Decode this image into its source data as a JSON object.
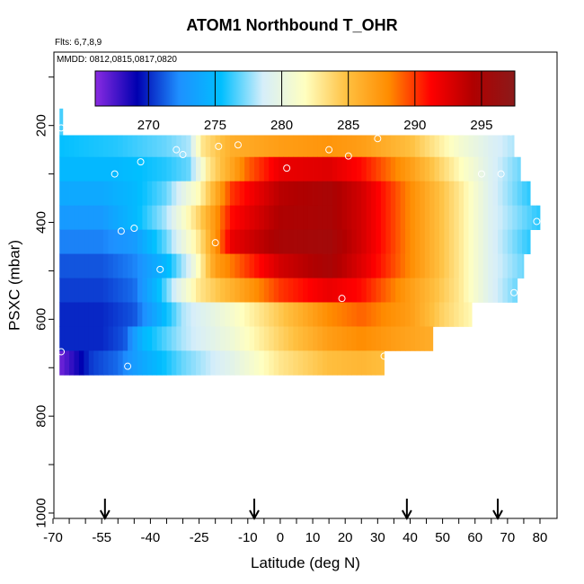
{
  "header": {
    "title": "ATOM1 Northbound T_OHR",
    "flights_label": "Flts: 6,7,8,9",
    "dates_label": "MMDD: 0812,0815,0817,0820"
  },
  "chart_data": {
    "type": "heatmap",
    "title": "ATOM1 Northbound T_OHR",
    "xlabel": "Latitude (deg N)",
    "ylabel": "PSXC (mbar)",
    "xlim": [
      -70,
      80
    ],
    "ylim": [
      1000,
      80
    ],
    "x_ticks": [
      -70,
      -55,
      -40,
      -25,
      -10,
      0,
      10,
      20,
      30,
      40,
      50,
      60,
      70,
      80
    ],
    "y_ticks": [
      200,
      400,
      600,
      800,
      1000
    ],
    "colorbar": {
      "range": [
        266,
        297.5
      ],
      "ticks": [
        270,
        275,
        280,
        285,
        290,
        295
      ],
      "colors": [
        "#8a2be2",
        "#0000b0",
        "#1e90ff",
        "#00bfff",
        "#d6eefa",
        "#ffffc0",
        "#ffc040",
        "#ff8c00",
        "#ff0000",
        "#b00000",
        "#8b1a1a"
      ]
    },
    "pressure_bands": [
      {
        "p_top": 165,
        "p_bot": 220,
        "lat_min": -68,
        "lat_max": -67,
        "profile": [
          [
            -68,
            276.5
          ],
          [
            -67,
            276.5
          ]
        ]
      },
      {
        "p_top": 220,
        "p_bot": 265,
        "lat_min": -68,
        "lat_max": 72,
        "profile": [
          [
            -68,
            275.5
          ],
          [
            -50,
            276
          ],
          [
            -35,
            277
          ],
          [
            -28,
            278
          ],
          [
            -24,
            283
          ],
          [
            -15,
            286
          ],
          [
            0,
            287
          ],
          [
            15,
            287.5
          ],
          [
            25,
            287
          ],
          [
            40,
            285
          ],
          [
            55,
            281
          ],
          [
            65,
            279
          ],
          [
            72,
            278
          ]
        ]
      },
      {
        "p_top": 265,
        "p_bot": 315,
        "lat_min": -68,
        "lat_max": 74,
        "profile": [
          [
            -68,
            275
          ],
          [
            -50,
            275
          ],
          [
            -35,
            276
          ],
          [
            -28,
            277
          ],
          [
            -22,
            283
          ],
          [
            -10,
            289
          ],
          [
            0,
            292
          ],
          [
            15,
            292.5
          ],
          [
            25,
            291
          ],
          [
            40,
            287
          ],
          [
            55,
            282
          ],
          [
            65,
            279
          ],
          [
            74,
            277
          ]
        ]
      },
      {
        "p_top": 315,
        "p_bot": 365,
        "lat_min": -68,
        "lat_max": 77,
        "profile": [
          [
            -68,
            274
          ],
          [
            -55,
            274
          ],
          [
            -45,
            275
          ],
          [
            -35,
            277
          ],
          [
            -25,
            282
          ],
          [
            -15,
            290
          ],
          [
            0,
            294
          ],
          [
            15,
            295
          ],
          [
            25,
            293
          ],
          [
            40,
            288
          ],
          [
            55,
            283
          ],
          [
            65,
            279
          ],
          [
            77,
            276
          ]
        ]
      },
      {
        "p_top": 365,
        "p_bot": 415,
        "lat_min": -68,
        "lat_max": 80,
        "profile": [
          [
            -68,
            273
          ],
          [
            -55,
            273
          ],
          [
            -45,
            275
          ],
          [
            -35,
            278
          ],
          [
            -25,
            284
          ],
          [
            -15,
            291
          ],
          [
            0,
            294.5
          ],
          [
            15,
            295
          ],
          [
            25,
            293
          ],
          [
            40,
            288
          ],
          [
            55,
            283
          ],
          [
            65,
            279
          ],
          [
            80,
            276
          ]
        ]
      },
      {
        "p_top": 415,
        "p_bot": 465,
        "lat_min": -68,
        "lat_max": 77,
        "profile": [
          [
            -68,
            272
          ],
          [
            -55,
            272
          ],
          [
            -45,
            273
          ],
          [
            -35,
            277
          ],
          [
            -25,
            283
          ],
          [
            -15,
            292
          ],
          [
            0,
            295
          ],
          [
            15,
            295.5
          ],
          [
            25,
            293
          ],
          [
            40,
            288
          ],
          [
            55,
            283
          ],
          [
            65,
            279
          ],
          [
            77,
            276
          ]
        ]
      },
      {
        "p_top": 465,
        "p_bot": 515,
        "lat_min": -68,
        "lat_max": 75,
        "profile": [
          [
            -68,
            271
          ],
          [
            -55,
            271
          ],
          [
            -45,
            272
          ],
          [
            -35,
            275
          ],
          [
            -28,
            279
          ],
          [
            -20,
            287
          ],
          [
            0,
            293
          ],
          [
            15,
            295
          ],
          [
            25,
            292.5
          ],
          [
            40,
            288
          ],
          [
            55,
            283
          ],
          [
            65,
            279
          ],
          [
            75,
            277
          ]
        ]
      },
      {
        "p_top": 515,
        "p_bot": 565,
        "lat_min": -68,
        "lat_max": 73,
        "profile": [
          [
            -68,
            270.5
          ],
          [
            -55,
            270.5
          ],
          [
            -45,
            271.5
          ],
          [
            -38,
            275
          ],
          [
            -32,
            279
          ],
          [
            -25,
            283
          ],
          [
            0,
            290
          ],
          [
            15,
            292
          ],
          [
            25,
            291
          ],
          [
            40,
            287
          ],
          [
            55,
            283
          ],
          [
            65,
            279
          ],
          [
            73,
            277
          ]
        ]
      },
      {
        "p_top": 565,
        "p_bot": 615,
        "lat_min": -68,
        "lat_max": 59,
        "profile": [
          [
            -68,
            270
          ],
          [
            -55,
            270
          ],
          [
            -45,
            271
          ],
          [
            -38,
            274
          ],
          [
            -30,
            278
          ],
          [
            -15,
            281
          ],
          [
            0,
            284.5
          ],
          [
            15,
            288
          ],
          [
            25,
            289
          ],
          [
            40,
            287
          ],
          [
            50,
            284
          ],
          [
            59,
            282
          ]
        ]
      },
      {
        "p_top": 615,
        "p_bot": 665,
        "lat_min": -68,
        "lat_max": 47,
        "profile": [
          [
            -68,
            270
          ],
          [
            -55,
            270
          ],
          [
            -48,
            271
          ],
          [
            -42,
            275
          ],
          [
            -30,
            278
          ],
          [
            -15,
            280.5
          ],
          [
            0,
            284
          ],
          [
            15,
            287
          ],
          [
            25,
            288
          ],
          [
            35,
            287
          ],
          [
            47,
            286
          ]
        ]
      },
      {
        "p_top": 665,
        "p_bot": 715,
        "lat_min": -68,
        "lat_max": 32,
        "profile": [
          [
            -68,
            266.5
          ],
          [
            -63,
            268.5
          ],
          [
            -58,
            270.5
          ],
          [
            -50,
            271.5
          ],
          [
            -42,
            274
          ],
          [
            -30,
            277
          ],
          [
            -15,
            279.5
          ],
          [
            0,
            283
          ],
          [
            15,
            285
          ],
          [
            25,
            285.5
          ],
          [
            32,
            285
          ]
        ]
      }
    ],
    "sample_points": [
      {
        "lat": -67.5,
        "p": 205
      },
      {
        "lat": 30,
        "p": 227
      },
      {
        "lat": 71,
        "p": 213
      },
      {
        "lat": -32,
        "p": 250
      },
      {
        "lat": -30,
        "p": 260
      },
      {
        "lat": -19,
        "p": 243
      },
      {
        "lat": -13,
        "p": 240
      },
      {
        "lat": 15,
        "p": 250
      },
      {
        "lat": 21,
        "p": 263
      },
      {
        "lat": -43,
        "p": 275
      },
      {
        "lat": 2,
        "p": 288
      },
      {
        "lat": -51,
        "p": 300
      },
      {
        "lat": 62,
        "p": 300
      },
      {
        "lat": 68,
        "p": 300
      },
      {
        "lat": 79,
        "p": 398
      },
      {
        "lat": -45,
        "p": 412
      },
      {
        "lat": -49,
        "p": 418
      },
      {
        "lat": -20,
        "p": 442
      },
      {
        "lat": -37,
        "p": 497
      },
      {
        "lat": 72,
        "p": 545
      },
      {
        "lat": 19,
        "p": 557
      },
      {
        "lat": -67.5,
        "p": 667
      },
      {
        "lat": 32,
        "p": 676
      },
      {
        "lat": -47,
        "p": 697
      }
    ],
    "arrows_lat": [
      -54,
      -8,
      39,
      67
    ]
  }
}
